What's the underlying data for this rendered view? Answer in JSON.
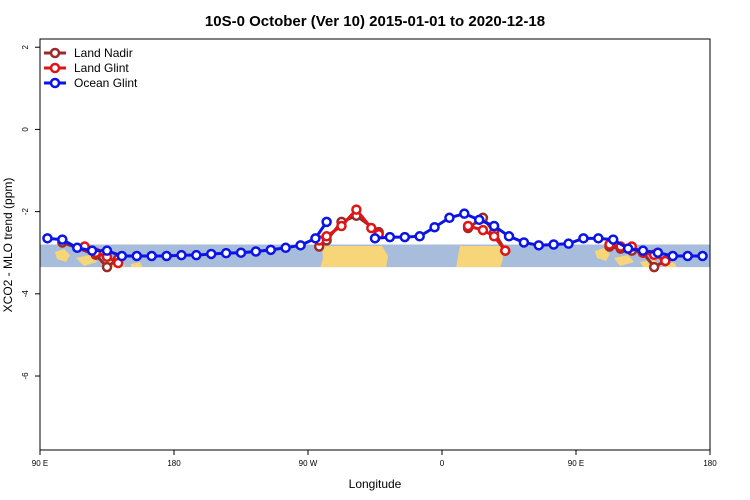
{
  "chart_data": {
    "type": "line",
    "title": "10S-0 October (Ver 10)   2015-01-01 to 2020-12-18",
    "xlabel": "Longitude",
    "ylabel": "XCO2 - MLO trend (ppm)",
    "xlim": [
      90,
      540
    ],
    "ylim": [
      -7.8,
      2.2
    ],
    "x_ticks": [
      {
        "value": 90,
        "label": "90 E"
      },
      {
        "value": 180,
        "label": "180"
      },
      {
        "value": 270,
        "label": "90 W"
      },
      {
        "value": 360,
        "label": "0"
      },
      {
        "value": 450,
        "label": "90 E"
      },
      {
        "value": 540,
        "label": "180"
      }
    ],
    "y_ticks": [
      {
        "value": 2,
        "label": "2"
      },
      {
        "value": 0,
        "label": "0"
      },
      {
        "value": -2,
        "label": "-2"
      },
      {
        "value": -4,
        "label": "-4"
      },
      {
        "value": -6,
        "label": "-6"
      }
    ],
    "legend_position": "top-left",
    "land_band": {
      "y_min": -3.35,
      "y_max": -2.8,
      "ocean_color": "#a8bddc",
      "land_color": "#f7d67a"
    },
    "series": [
      {
        "name": "Land Nadir",
        "color": "#9b2a2a",
        "segments": [
          [
            [
              105,
              -2.75
            ],
            [
              127.5,
              -3.05
            ],
            [
              135,
              -3.35
            ],
            [
              142.5,
              -3.15
            ]
          ],
          [
            [
              277.5,
              -2.85
            ],
            [
              282.5,
              -2.7
            ],
            [
              292.5,
              -2.25
            ],
            [
              302.5,
              -2.1
            ],
            [
              317.5,
              -2.5
            ]
          ],
          [
            [
              377.5,
              -2.4
            ],
            [
              387.5,
              -2.15
            ],
            [
              395,
              -2.5
            ],
            [
              402.5,
              -2.95
            ]
          ],
          [
            [
              472.5,
              -2.85
            ],
            [
              480,
              -2.9
            ],
            [
              487.5,
              -2.95
            ],
            [
              495,
              -3.0
            ],
            [
              502.5,
              -3.35
            ],
            [
              510,
              -3.2
            ]
          ]
        ]
      },
      {
        "name": "Land Glint",
        "color": "#e01515",
        "segments": [
          [
            [
              120,
              -2.85
            ],
            [
              127.5,
              -3.0
            ],
            [
              135,
              -3.1
            ],
            [
              142.5,
              -3.25
            ]
          ],
          [
            [
              277.5,
              -2.7
            ],
            [
              282.5,
              -2.6
            ],
            [
              292.5,
              -2.35
            ],
            [
              302.5,
              -1.95
            ],
            [
              312.5,
              -2.4
            ],
            [
              317.5,
              -2.55
            ]
          ],
          [
            [
              377.5,
              -2.35
            ],
            [
              387.5,
              -2.45
            ],
            [
              395,
              -2.6
            ],
            [
              402.5,
              -2.95
            ]
          ],
          [
            [
              472.5,
              -2.8
            ],
            [
              480,
              -2.85
            ],
            [
              487.5,
              -2.85
            ],
            [
              495,
              -3.0
            ],
            [
              502.5,
              -3.05
            ],
            [
              510,
              -3.2
            ]
          ]
        ]
      },
      {
        "name": "Ocean Glint",
        "color": "#0a14e6",
        "segments": [
          [
            [
              95,
              -2.65
            ],
            [
              105,
              -2.68
            ],
            [
              115,
              -2.88
            ],
            [
              125,
              -2.95
            ],
            [
              135,
              -2.95
            ],
            [
              145,
              -3.08
            ],
            [
              155,
              -3.08
            ],
            [
              165,
              -3.08
            ],
            [
              175,
              -3.08
            ],
            [
              185,
              -3.06
            ],
            [
              195,
              -3.06
            ],
            [
              205,
              -3.03
            ],
            [
              215,
              -3.01
            ],
            [
              225,
              -3.0
            ],
            [
              235,
              -2.97
            ],
            [
              245,
              -2.93
            ],
            [
              255,
              -2.88
            ],
            [
              265,
              -2.82
            ],
            [
              275,
              -2.65
            ],
            [
              282.5,
              -2.25
            ]
          ],
          [
            [
              315,
              -2.65
            ],
            [
              325,
              -2.62
            ],
            [
              335,
              -2.62
            ],
            [
              345,
              -2.6
            ],
            [
              355,
              -2.38
            ],
            [
              365,
              -2.15
            ],
            [
              375,
              -2.05
            ],
            [
              385,
              -2.2
            ],
            [
              395,
              -2.35
            ],
            [
              405,
              -2.6
            ],
            [
              415,
              -2.75
            ],
            [
              425,
              -2.82
            ],
            [
              435,
              -2.8
            ],
            [
              445,
              -2.78
            ],
            [
              455,
              -2.65
            ],
            [
              465,
              -2.65
            ],
            [
              475,
              -2.68
            ],
            [
              485,
              -2.9
            ],
            [
              495,
              -2.95
            ],
            [
              505,
              -3.0
            ],
            [
              515,
              -3.08
            ],
            [
              525,
              -3.08
            ],
            [
              535,
              -3.08
            ]
          ]
        ]
      }
    ]
  }
}
